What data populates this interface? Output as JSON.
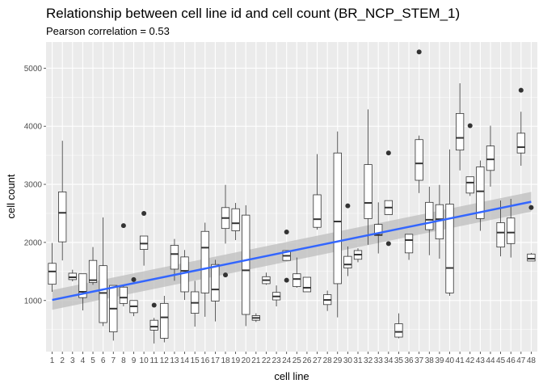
{
  "chart_data": {
    "type": "boxplot",
    "title": "Relationship between cell line id and cell count (BR_NCP_STEM_1)",
    "subtitle": "Pearson correlation = 0.53",
    "xlabel": "cell line",
    "ylabel": "cell count",
    "categories": [
      "1",
      "2",
      "3",
      "4",
      "5",
      "6",
      "7",
      "8",
      "9",
      "10",
      "11",
      "12",
      "13",
      "14",
      "15",
      "16",
      "17",
      "18",
      "19",
      "20",
      "21",
      "22",
      "23",
      "24",
      "25",
      "26",
      "27",
      "28",
      "29",
      "30",
      "31",
      "32",
      "33",
      "34",
      "35",
      "36",
      "37",
      "38",
      "39",
      "40",
      "41",
      "42",
      "43",
      "44",
      "45",
      "46",
      "47",
      "48"
    ],
    "y_ticks": [
      1000,
      2000,
      3000,
      4000,
      5000
    ],
    "ylim": [
      120,
      5450
    ],
    "xlim": [
      0.4,
      48.6
    ],
    "grid": true,
    "colors": {
      "panel_bg": "#ebebeb",
      "grid_major": "#ffffff",
      "box_outline": "#333333",
      "fit_line": "#3366ff",
      "confidence_band": "#bdbdbd"
    },
    "trend": {
      "method": "linear",
      "x": [
        1,
        48
      ],
      "y": [
        1010,
        2700
      ],
      "band_lower": [
        840,
        2530
      ],
      "band_upper": [
        1180,
        2870
      ]
    },
    "boxes": [
      {
        "x": 1,
        "whisker_low": 1150,
        "q1": 1280,
        "median": 1500,
        "q3": 1640,
        "whisker_high": 1990,
        "outliers": []
      },
      {
        "x": 2,
        "whisker_low": 1690,
        "q1": 2010,
        "median": 2510,
        "q3": 2870,
        "whisker_high": 3750,
        "outliers": []
      },
      {
        "x": 3,
        "whisker_low": 1330,
        "q1": 1360,
        "median": 1400,
        "q3": 1470,
        "whisker_high": 1530,
        "outliers": []
      },
      {
        "x": 4,
        "whisker_low": 830,
        "q1": 1050,
        "median": 1150,
        "q3": 1460,
        "whisker_high": 1460,
        "outliers": []
      },
      {
        "x": 5,
        "whisker_low": 1270,
        "q1": 1310,
        "median": 1350,
        "q3": 1690,
        "whisker_high": 1920,
        "outliers": []
      },
      {
        "x": 6,
        "whisker_low": 560,
        "q1": 620,
        "median": 1130,
        "q3": 1600,
        "whisker_high": 2430,
        "outliers": []
      },
      {
        "x": 7,
        "whisker_low": 310,
        "q1": 460,
        "median": 860,
        "q3": 1260,
        "whisker_high": 1260,
        "outliers": []
      },
      {
        "x": 8,
        "whisker_low": 900,
        "q1": 950,
        "median": 1050,
        "q3": 1230,
        "whisker_high": 1260,
        "outliers": [
          2290
        ]
      },
      {
        "x": 9,
        "whisker_low": 730,
        "q1": 790,
        "median": 900,
        "q3": 1000,
        "whisker_high": 1000,
        "outliers": [
          1360
        ]
      },
      {
        "x": 10,
        "whisker_low": 1600,
        "q1": 1880,
        "median": 1980,
        "q3": 2110,
        "whisker_high": 2110,
        "outliers": [
          2500
        ]
      },
      {
        "x": 11,
        "whisker_low": 260,
        "q1": 490,
        "median": 550,
        "q3": 660,
        "whisker_high": 700,
        "outliers": [
          920
        ]
      },
      {
        "x": 12,
        "whisker_low": 280,
        "q1": 350,
        "median": 710,
        "q3": 950,
        "whisker_high": 1080,
        "outliers": []
      },
      {
        "x": 13,
        "whisker_low": 1340,
        "q1": 1540,
        "median": 1800,
        "q3": 1950,
        "whisker_high": 2060,
        "outliers": []
      },
      {
        "x": 14,
        "whisker_low": 1010,
        "q1": 1150,
        "median": 1510,
        "q3": 1750,
        "whisker_high": 1870,
        "outliers": []
      },
      {
        "x": 15,
        "whisker_low": 550,
        "q1": 780,
        "median": 960,
        "q3": 1150,
        "whisker_high": 1340,
        "outliers": []
      },
      {
        "x": 16,
        "whisker_low": 720,
        "q1": 1130,
        "median": 1910,
        "q3": 2190,
        "whisker_high": 2340,
        "outliers": []
      },
      {
        "x": 17,
        "whisker_low": 640,
        "q1": 990,
        "median": 1190,
        "q3": 1620,
        "whisker_high": 1700,
        "outliers": []
      },
      {
        "x": 18,
        "whisker_low": 1980,
        "q1": 2240,
        "median": 2420,
        "q3": 2600,
        "whisker_high": 2990,
        "outliers": [
          1440
        ]
      },
      {
        "x": 19,
        "whisker_low": 2040,
        "q1": 2200,
        "median": 2330,
        "q3": 2580,
        "whisker_high": 2680,
        "outliers": []
      },
      {
        "x": 20,
        "whisker_low": 560,
        "q1": 760,
        "median": 1520,
        "q3": 2470,
        "whisker_high": 2640,
        "outliers": []
      },
      {
        "x": 21,
        "whisker_low": 630,
        "q1": 660,
        "median": 700,
        "q3": 740,
        "whisker_high": 780,
        "outliers": []
      },
      {
        "x": 22,
        "whisker_low": 1270,
        "q1": 1290,
        "median": 1350,
        "q3": 1410,
        "whisker_high": 1480,
        "outliers": []
      },
      {
        "x": 23,
        "whisker_low": 900,
        "q1": 1010,
        "median": 1070,
        "q3": 1140,
        "whisker_high": 1260,
        "outliers": []
      },
      {
        "x": 24,
        "whisker_low": 1690,
        "q1": 1690,
        "median": 1770,
        "q3": 1860,
        "whisker_high": 1860,
        "outliers": [
          2180,
          1350
        ]
      },
      {
        "x": 25,
        "whisker_low": 1220,
        "q1": 1240,
        "median": 1370,
        "q3": 1460,
        "whisker_high": 1740,
        "outliers": []
      },
      {
        "x": 26,
        "whisker_low": 1150,
        "q1": 1150,
        "median": 1220,
        "q3": 1400,
        "whisker_high": 1400,
        "outliers": []
      },
      {
        "x": 27,
        "whisker_low": 2220,
        "q1": 2260,
        "median": 2400,
        "q3": 2820,
        "whisker_high": 3520,
        "outliers": []
      },
      {
        "x": 28,
        "whisker_low": 820,
        "q1": 930,
        "median": 1010,
        "q3": 1100,
        "whisker_high": 1170,
        "outliers": []
      },
      {
        "x": 29,
        "whisker_low": 710,
        "q1": 1290,
        "median": 2360,
        "q3": 3540,
        "whisker_high": 3910,
        "outliers": []
      },
      {
        "x": 30,
        "whisker_low": 1420,
        "q1": 1560,
        "median": 1620,
        "q3": 1760,
        "whisker_high": 1930,
        "outliers": [
          2630
        ]
      },
      {
        "x": 31,
        "whisker_low": 1660,
        "q1": 1710,
        "median": 1790,
        "q3": 1860,
        "whisker_high": 1900,
        "outliers": []
      },
      {
        "x": 32,
        "whisker_low": 1960,
        "q1": 2410,
        "median": 2680,
        "q3": 3340,
        "whisker_high": 4290,
        "outliers": []
      },
      {
        "x": 33,
        "whisker_low": 1810,
        "q1": 2120,
        "median": 2130,
        "q3": 2310,
        "whisker_high": 2690,
        "outliers": []
      },
      {
        "x": 34,
        "whisker_low": 2480,
        "q1": 2480,
        "median": 2600,
        "q3": 2720,
        "whisker_high": 2720,
        "outliers": [
          3540,
          1980
        ]
      },
      {
        "x": 35,
        "whisker_low": 350,
        "q1": 370,
        "median": 460,
        "q3": 600,
        "whisker_high": 780,
        "outliers": []
      },
      {
        "x": 36,
        "whisker_low": 1700,
        "q1": 1820,
        "median": 2040,
        "q3": 2140,
        "whisker_high": 2140,
        "outliers": []
      },
      {
        "x": 37,
        "whisker_low": 2850,
        "q1": 3070,
        "median": 3360,
        "q3": 3770,
        "whisker_high": 3840,
        "outliers": [
          5280
        ]
      },
      {
        "x": 38,
        "whisker_low": 1780,
        "q1": 2220,
        "median": 2390,
        "q3": 2690,
        "whisker_high": 2960,
        "outliers": []
      },
      {
        "x": 39,
        "whisker_low": 1720,
        "q1": 2060,
        "median": 2400,
        "q3": 2650,
        "whisker_high": 2990,
        "outliers": []
      },
      {
        "x": 40,
        "whisker_low": 1080,
        "q1": 1130,
        "median": 1560,
        "q3": 2660,
        "whisker_high": 3600,
        "outliers": []
      },
      {
        "x": 41,
        "whisker_low": 3240,
        "q1": 3590,
        "median": 3800,
        "q3": 4220,
        "whisker_high": 4740,
        "outliers": []
      },
      {
        "x": 42,
        "whisker_low": 2800,
        "q1": 2850,
        "median": 3030,
        "q3": 3130,
        "whisker_high": 3130,
        "outliers": [
          4010
        ]
      },
      {
        "x": 43,
        "whisker_low": 2200,
        "q1": 2410,
        "median": 2880,
        "q3": 3300,
        "whisker_high": 3410,
        "outliers": []
      },
      {
        "x": 44,
        "whisker_low": 2960,
        "q1": 3240,
        "median": 3430,
        "q3": 3660,
        "whisker_high": 4010,
        "outliers": []
      },
      {
        "x": 45,
        "whisker_low": 1760,
        "q1": 1920,
        "median": 2170,
        "q3": 2340,
        "whisker_high": 2720,
        "outliers": []
      },
      {
        "x": 46,
        "whisker_low": 1740,
        "q1": 1980,
        "median": 2170,
        "q3": 2420,
        "whisker_high": 2750,
        "outliers": []
      },
      {
        "x": 47,
        "whisker_low": 3320,
        "q1": 3540,
        "median": 3640,
        "q3": 3880,
        "whisker_high": 4250,
        "outliers": [
          4620
        ]
      },
      {
        "x": 48,
        "whisker_low": 1680,
        "q1": 1680,
        "median": 1720,
        "q3": 1800,
        "whisker_high": 1820,
        "outliers": [
          2600
        ]
      }
    ]
  }
}
